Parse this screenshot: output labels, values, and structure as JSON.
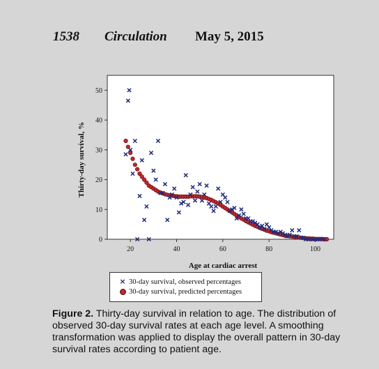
{
  "header": {
    "page_number": "1538",
    "journal": "Circulation",
    "date": "May 5, 2015"
  },
  "chart_data": {
    "type": "scatter",
    "xlabel": "Age at cardiac arrest",
    "ylabel": "Thirty-day survival, %",
    "xlim": [
      10,
      108
    ],
    "ylim": [
      0,
      55
    ],
    "xticks": [
      20,
      40,
      60,
      80,
      100
    ],
    "yticks": [
      0,
      10,
      20,
      30,
      40,
      50
    ],
    "grid": false,
    "legend_position": "bottom",
    "series": [
      {
        "name": "30-day survival, observed percentages",
        "marker": "x",
        "color": "#1f2a7a",
        "points": [
          [
            18,
            28.5
          ],
          [
            19,
            46.5
          ],
          [
            19.5,
            50
          ],
          [
            20,
            30
          ],
          [
            21,
            22
          ],
          [
            22,
            33
          ],
          [
            23,
            0
          ],
          [
            24,
            14.5
          ],
          [
            25,
            26.5
          ],
          [
            26,
            6.5
          ],
          [
            27,
            11
          ],
          [
            28,
            0
          ],
          [
            29,
            29
          ],
          [
            30,
            23
          ],
          [
            31,
            20
          ],
          [
            32,
            33
          ],
          [
            33,
            15.5
          ],
          [
            34,
            15.5
          ],
          [
            35,
            18.5
          ],
          [
            36,
            6.5
          ],
          [
            37,
            14
          ],
          [
            38,
            15
          ],
          [
            39,
            17
          ],
          [
            40,
            14
          ],
          [
            41,
            9
          ],
          [
            42,
            12
          ],
          [
            43,
            12.5
          ],
          [
            44,
            21.5
          ],
          [
            45,
            11.5
          ],
          [
            46,
            15
          ],
          [
            47,
            17.5
          ],
          [
            48,
            13
          ],
          [
            49,
            16
          ],
          [
            50,
            18.5
          ],
          [
            51,
            13
          ],
          [
            52,
            15
          ],
          [
            53,
            18
          ],
          [
            54,
            12
          ],
          [
            55,
            11
          ],
          [
            56,
            9.5
          ],
          [
            57,
            11
          ],
          [
            58,
            17
          ],
          [
            59,
            12.5
          ],
          [
            60,
            15
          ],
          [
            61,
            14
          ],
          [
            62,
            12.5
          ],
          [
            63,
            9.5
          ],
          [
            64,
            10
          ],
          [
            65,
            10.5
          ],
          [
            66,
            7
          ],
          [
            67,
            8
          ],
          [
            68,
            10
          ],
          [
            69,
            8.5
          ],
          [
            70,
            7
          ],
          [
            71,
            7
          ],
          [
            72,
            6
          ],
          [
            73,
            6
          ],
          [
            74,
            5.5
          ],
          [
            75,
            5
          ],
          [
            76,
            4
          ],
          [
            77,
            4.5
          ],
          [
            78,
            3.5
          ],
          [
            79,
            5
          ],
          [
            80,
            4
          ],
          [
            81,
            3
          ],
          [
            82,
            2.5
          ],
          [
            83,
            2.5
          ],
          [
            84,
            2
          ],
          [
            85,
            2.5
          ],
          [
            86,
            2
          ],
          [
            87,
            1.5
          ],
          [
            88,
            1
          ],
          [
            89,
            1.5
          ],
          [
            90,
            3
          ],
          [
            91,
            1
          ],
          [
            92,
            1
          ],
          [
            93,
            3
          ],
          [
            94,
            0.5
          ],
          [
            95,
            0.5
          ],
          [
            96,
            0
          ],
          [
            97,
            0
          ],
          [
            98,
            0
          ],
          [
            99,
            0
          ],
          [
            100,
            0
          ],
          [
            101,
            0
          ],
          [
            102,
            0
          ],
          [
            103,
            0
          ],
          [
            104,
            0
          ]
        ]
      },
      {
        "name": "30-day survival, predicted percentages",
        "marker": "circle",
        "color": "#c0282d",
        "points": [
          [
            18,
            33
          ],
          [
            19,
            31
          ],
          [
            20,
            29
          ],
          [
            21,
            27
          ],
          [
            22,
            25
          ],
          [
            23,
            23.5
          ],
          [
            24,
            22
          ],
          [
            25,
            21
          ],
          [
            26,
            20
          ],
          [
            27,
            19
          ],
          [
            28,
            18
          ],
          [
            29,
            17.5
          ],
          [
            30,
            17
          ],
          [
            31,
            16.5
          ],
          [
            32,
            16
          ],
          [
            33,
            15.7
          ],
          [
            34,
            15.4
          ],
          [
            35,
            15.1
          ],
          [
            36,
            14.9
          ],
          [
            37,
            14.7
          ],
          [
            38,
            14.6
          ],
          [
            39,
            14.5
          ],
          [
            40,
            14.4
          ],
          [
            41,
            14.3
          ],
          [
            42,
            14.3
          ],
          [
            43,
            14.3
          ],
          [
            44,
            14.3
          ],
          [
            45,
            14.3
          ],
          [
            46,
            14.4
          ],
          [
            47,
            14.4
          ],
          [
            48,
            14.4
          ],
          [
            49,
            14.4
          ],
          [
            50,
            14.3
          ],
          [
            51,
            14.2
          ],
          [
            52,
            14
          ],
          [
            53,
            13.8
          ],
          [
            54,
            13.5
          ],
          [
            55,
            13.2
          ],
          [
            56,
            12.8
          ],
          [
            57,
            12.4
          ],
          [
            58,
            12
          ],
          [
            59,
            11.5
          ],
          [
            60,
            11
          ],
          [
            61,
            10.5
          ],
          [
            62,
            10
          ],
          [
            63,
            9.5
          ],
          [
            64,
            9
          ],
          [
            65,
            8.5
          ],
          [
            66,
            8
          ],
          [
            67,
            7.5
          ],
          [
            68,
            7
          ],
          [
            69,
            6.6
          ],
          [
            70,
            6.1
          ],
          [
            71,
            5.7
          ],
          [
            72,
            5.3
          ],
          [
            73,
            4.9
          ],
          [
            74,
            4.5
          ],
          [
            75,
            4.2
          ],
          [
            76,
            3.8
          ],
          [
            77,
            3.5
          ],
          [
            78,
            3.2
          ],
          [
            79,
            2.9
          ],
          [
            80,
            2.7
          ],
          [
            81,
            2.4
          ],
          [
            82,
            2.2
          ],
          [
            83,
            2
          ],
          [
            84,
            1.8
          ],
          [
            85,
            1.6
          ],
          [
            86,
            1.4
          ],
          [
            87,
            1.2
          ],
          [
            88,
            1.1
          ],
          [
            89,
            1
          ],
          [
            90,
            0.9
          ],
          [
            91,
            0.8
          ],
          [
            92,
            0.7
          ],
          [
            93,
            0.6
          ],
          [
            94,
            0.5
          ],
          [
            95,
            0.4
          ],
          [
            96,
            0.3
          ],
          [
            97,
            0.3
          ],
          [
            98,
            0.2
          ],
          [
            99,
            0.2
          ],
          [
            100,
            0.1
          ],
          [
            101,
            0.1
          ],
          [
            102,
            0.1
          ],
          [
            103,
            0.1
          ],
          [
            104,
            0
          ],
          [
            105,
            0
          ]
        ]
      }
    ]
  },
  "caption": {
    "label": "Figure 2.",
    "text": "Thirty-day survival in relation to age. The distribution of observed 30-day survival rates at each age level. A smoothing transformation was applied to display the overall pattern in 30-day survival rates according to patient age."
  }
}
